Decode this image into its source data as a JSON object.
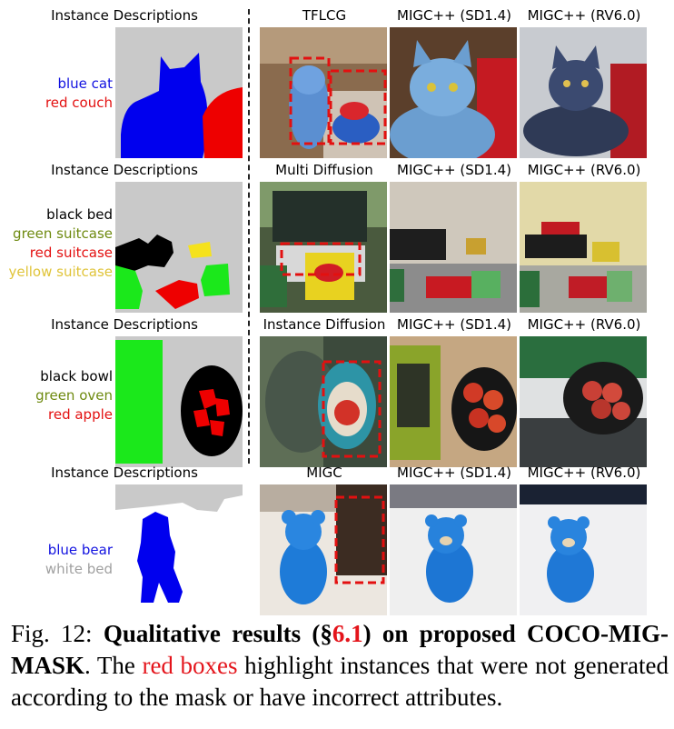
{
  "rows": [
    {
      "desc_header": "Instance Descriptions",
      "labels": [
        {
          "text": "blue cat",
          "color": "#1212e0"
        },
        {
          "text": "red couch",
          "color": "#e31010"
        }
      ],
      "columns": [
        "TFLCG",
        "MIGC++ (SD1.4)",
        "MIGC++ (RV6.0)"
      ]
    },
    {
      "desc_header": "Instance Descriptions",
      "labels": [
        {
          "text": "black bed",
          "color": "#000000"
        },
        {
          "text": "green suitcase",
          "color": "#6e8a10"
        },
        {
          "text": "red suitcase",
          "color": "#e31010"
        },
        {
          "text": "yellow suitcase",
          "color": "#e0c43a"
        }
      ],
      "columns": [
        "Multi Diffusion",
        "MIGC++ (SD1.4)",
        "MIGC++ (RV6.0)"
      ]
    },
    {
      "desc_header": "Instance Descriptions",
      "labels": [
        {
          "text": "black bowl",
          "color": "#000000"
        },
        {
          "text": "green oven",
          "color": "#6e8a10"
        },
        {
          "text": "red apple",
          "color": "#e31010"
        }
      ],
      "columns": [
        "Instance Diffusion",
        "MIGC++ (SD1.4)",
        "MIGC++ (RV6.0)"
      ]
    },
    {
      "desc_header": "Instance Descriptions",
      "labels": [
        {
          "text": "blue bear",
          "color": "#1212e0"
        },
        {
          "text": "white bed",
          "color": "#a0a0a0"
        }
      ],
      "columns": [
        "MIGC",
        "MIGC++ (SD1.4)",
        "MIGC++ (RV6.0)"
      ]
    }
  ],
  "caption": {
    "fig_label": "Fig. 12:",
    "bold_pre": "Qualitative results (§",
    "bold_ref": "6.1",
    "bold_post": ") on proposed COCO-MIG-MASK",
    "text_1": ". The ",
    "red_text": "red boxes",
    "text_2": " highlight instances that were not generated according to the mask or have incorrect attributes."
  }
}
